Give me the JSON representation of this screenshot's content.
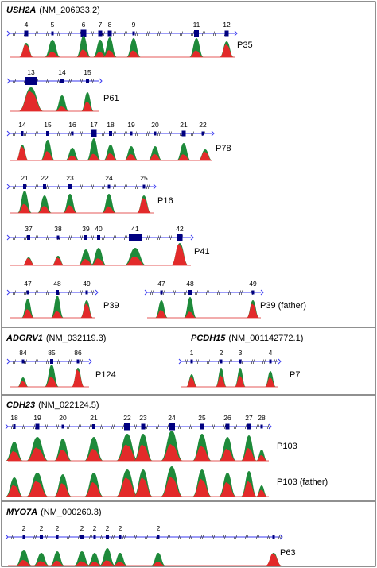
{
  "colors": {
    "exon": "#000080",
    "intron": "#3a3af0",
    "peak_green": "#1e8a3a",
    "peak_red": "#e32a2a",
    "baseline": "#e65a5a",
    "frame": "#222222"
  },
  "sections": {
    "ush2a": {
      "gene": "USH2A",
      "accession": "(NM_206933.2)"
    },
    "adgrv1": {
      "gene": "ADGRV1",
      "accession": "(NM_032119.3)"
    },
    "pcdh15": {
      "gene": "PCDH15",
      "accession": "(NM_001142772.1)"
    },
    "cdh23": {
      "gene": "CDH23",
      "accession": "(NM_022124.5)"
    },
    "myo7a": {
      "gene": "MYO7A",
      "accession": "(NM_000260.3)"
    }
  },
  "tracks": {
    "p35": {
      "exons": [
        "4",
        "5",
        "6",
        "7",
        "8",
        "9",
        "11",
        "12"
      ],
      "label": "P35"
    },
    "p61": {
      "exons": [
        "13",
        "14",
        "15"
      ],
      "label": "P61"
    },
    "p78": {
      "exons": [
        "14",
        "15",
        "16",
        "17",
        "18",
        "19",
        "20",
        "21",
        "22"
      ],
      "label": "P78"
    },
    "p16": {
      "exons": [
        "21",
        "22",
        "23",
        "24",
        "25"
      ],
      "label": "P16"
    },
    "p41": {
      "exons": [
        "37",
        "38",
        "39",
        "40",
        "41",
        "42"
      ],
      "label": "P41"
    },
    "p39": {
      "exons": [
        "47",
        "48",
        "49"
      ],
      "label": "P39"
    },
    "p39f": {
      "exons": [
        "47",
        "48",
        "49"
      ],
      "label": "P39 (father)"
    },
    "p124": {
      "exons": [
        "84",
        "85",
        "86"
      ],
      "label": "P124"
    },
    "p7": {
      "exons": [
        "1",
        "2",
        "3",
        "4"
      ],
      "label": "P7"
    },
    "p103": {
      "exons": [
        "18",
        "19",
        "20",
        "21",
        "22",
        "23",
        "24",
        "25",
        "26",
        "27",
        "28"
      ],
      "label": "P103",
      "label_father": "P103 (father)"
    },
    "p63": {
      "exons": [
        "2",
        "2",
        "2",
        "2",
        "2",
        "2",
        "2",
        "2"
      ],
      "label": "P63"
    }
  }
}
